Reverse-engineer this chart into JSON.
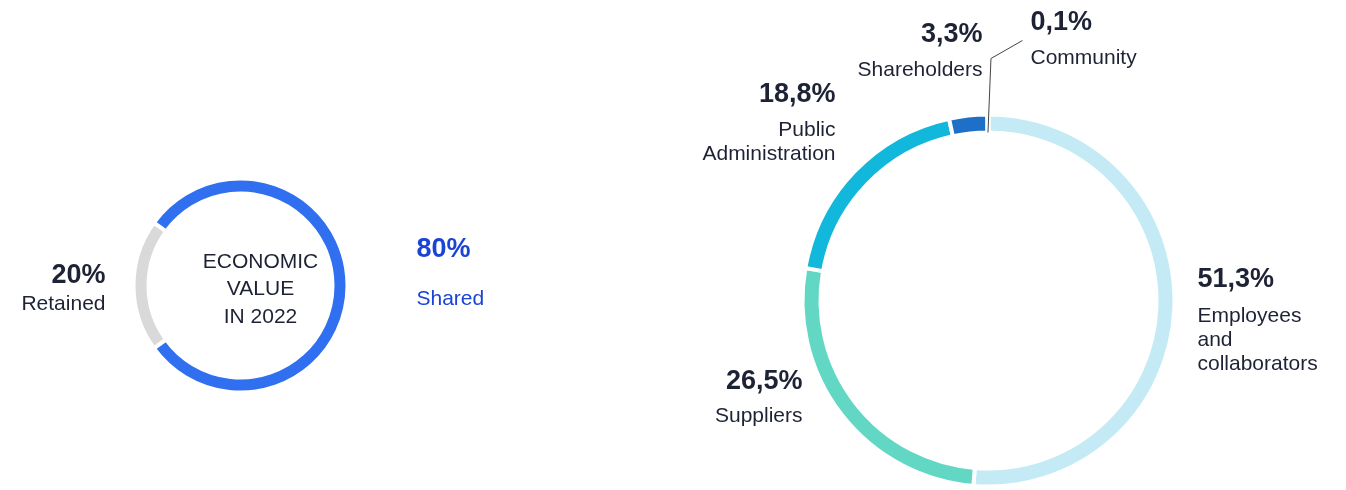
{
  "chart_data": [
    {
      "type": "donut",
      "title": "ECONOMIC VALUE IN 2022",
      "categories": [
        "Retained",
        "Shared"
      ],
      "values": [
        20,
        80
      ],
      "value_labels": [
        "20%",
        "80%"
      ],
      "colors": [
        "#d9d9d9",
        "#2f6ff0"
      ]
    },
    {
      "type": "donut",
      "categories": [
        "Employees and collaborators",
        "Suppliers",
        "Public Administration",
        "Shareholders",
        "Community"
      ],
      "values": [
        51.3,
        26.5,
        18.8,
        3.3,
        0.1
      ],
      "value_labels": [
        "51,3%",
        "26,5%",
        "18,8%",
        "3,3%",
        "0,1%"
      ],
      "colors": [
        "#c4ebf5",
        "#62d8c4",
        "#12b8dc",
        "#1e6fc8",
        "#0a2f9c"
      ]
    }
  ]
}
